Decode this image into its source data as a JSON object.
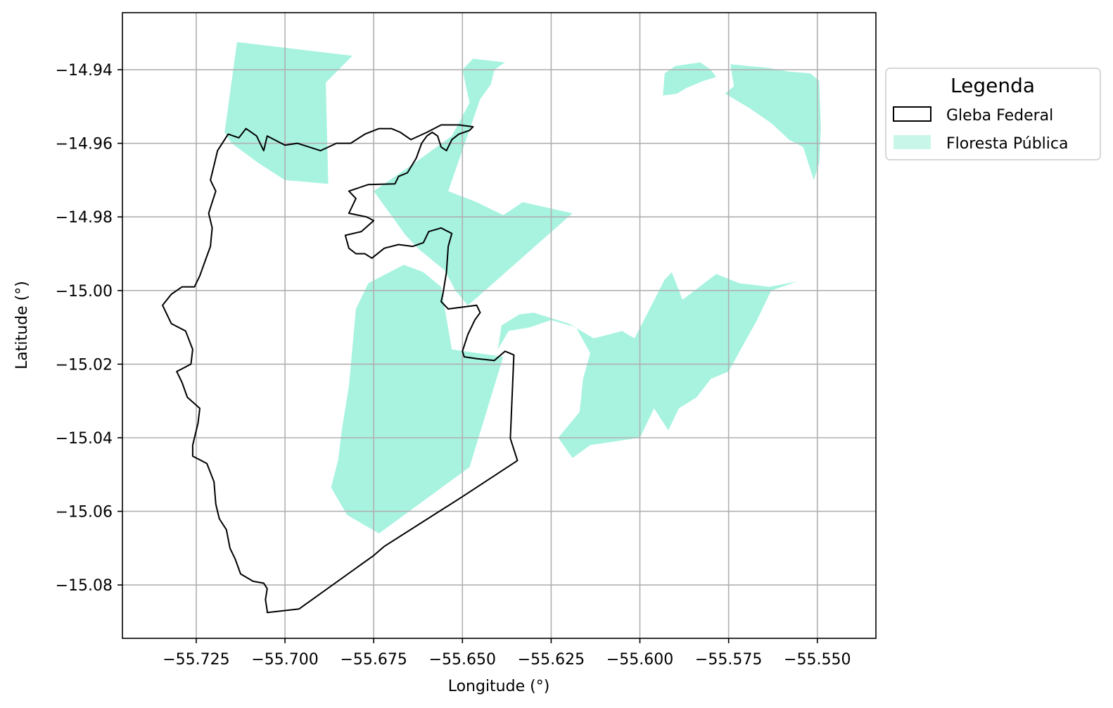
{
  "chart_data": {
    "type": "map",
    "xlabel": "Longitude (°)",
    "ylabel": "Latitude (°)",
    "xlim": [
      -55.7458,
      -55.5335
    ],
    "ylim": [
      -15.0945,
      -14.9245
    ],
    "grid": true,
    "x_ticks": [
      {
        "value": -55.725,
        "label": "−55.725"
      },
      {
        "value": -55.7,
        "label": "−55.700"
      },
      {
        "value": -55.675,
        "label": "−55.675"
      },
      {
        "value": -55.65,
        "label": "−55.650"
      },
      {
        "value": -55.625,
        "label": "−55.625"
      },
      {
        "value": -55.6,
        "label": "−55.600"
      },
      {
        "value": -55.575,
        "label": "−55.575"
      },
      {
        "value": -55.55,
        "label": "−55.550"
      }
    ],
    "y_ticks": [
      {
        "value": -14.94,
        "label": "−14.94"
      },
      {
        "value": -14.96,
        "label": "−14.96"
      },
      {
        "value": -14.98,
        "label": "−14.98"
      },
      {
        "value": -15.0,
        "label": "−15.00"
      },
      {
        "value": -15.02,
        "label": "−15.02"
      },
      {
        "value": -15.04,
        "label": "−15.04"
      },
      {
        "value": -15.06,
        "label": "−15.06"
      },
      {
        "value": -15.08,
        "label": "−15.08"
      }
    ],
    "legend": {
      "title": "Legenda",
      "placement": "outside-right-top",
      "entries": [
        {
          "label": "Gleba Federal",
          "style": "outline",
          "color": "#000000"
        },
        {
          "label": "Floresta Pública",
          "style": "fill",
          "color": "#a7f3e0"
        }
      ]
    },
    "layers": [
      {
        "name": "Floresta Pública",
        "fill": "#a7f3e0",
        "polygons": [
          [
            [
              -55.7135,
              -14.9325
            ],
            [
              -55.681,
              -14.9362
            ],
            [
              -55.6885,
              -14.9435
            ],
            [
              -55.6878,
              -14.971
            ],
            [
              -55.7,
              -14.97
            ],
            [
              -55.708,
              -14.965
            ],
            [
              -55.715,
              -14.96
            ],
            [
              -55.717,
              -14.957
            ]
          ],
          [
            [
              -55.675,
              -14.973
            ],
            [
              -55.663,
              -14.965
            ],
            [
              -55.653,
              -14.958
            ],
            [
              -55.648,
              -14.949
            ],
            [
              -55.65,
              -14.94
            ],
            [
              -55.647,
              -14.937
            ],
            [
              -55.638,
              -14.938
            ],
            [
              -55.641,
              -14.94
            ],
            [
              -55.642,
              -14.944
            ],
            [
              -55.645,
              -14.948
            ],
            [
              -55.654,
              -14.973
            ],
            [
              -55.646,
              -14.976
            ],
            [
              -55.6385,
              -14.9795
            ],
            [
              -55.633,
              -14.976
            ],
            [
              -55.619,
              -14.979
            ],
            [
              -55.646,
              -15.002
            ],
            [
              -55.6485,
              -15.004
            ],
            [
              -55.652,
              -15.0
            ],
            [
              -55.655,
              -14.9945
            ],
            [
              -55.662,
              -14.989
            ],
            [
              -55.666,
              -14.985
            ]
          ],
          [
            [
              -55.6825,
              -15.061
            ],
            [
              -55.6735,
              -15.066
            ],
            [
              -55.648,
              -15.048
            ],
            [
              -55.6385,
              -15.018
            ],
            [
              -55.653,
              -15.016
            ],
            [
              -55.656,
              -14.999
            ],
            [
              -55.661,
              -14.995
            ],
            [
              -55.6665,
              -14.993
            ],
            [
              -55.6765,
              -14.998
            ],
            [
              -55.68,
              -15.005
            ],
            [
              -55.682,
              -15.026
            ],
            [
              -55.683,
              -15.032
            ],
            [
              -55.684,
              -15.038
            ],
            [
              -55.685,
              -15.046
            ],
            [
              -55.687,
              -15.0535
            ]
          ],
          [
            [
              -55.64,
              -15.016
            ],
            [
              -55.637,
              -15.011
            ],
            [
              -55.631,
              -15.01
            ],
            [
              -55.625,
              -15.008
            ],
            [
              -55.618,
              -15.01
            ],
            [
              -55.614,
              -15.017
            ],
            [
              -55.616,
              -15.024
            ],
            [
              -55.617,
              -15.033
            ],
            [
              -55.623,
              -15.04
            ],
            [
              -55.619,
              -15.0455
            ],
            [
              -55.614,
              -15.042
            ],
            [
              -55.6,
              -15.04
            ],
            [
              -55.596,
              -15.032
            ],
            [
              -55.592,
              -15.038
            ],
            [
              -55.589,
              -15.032
            ],
            [
              -55.584,
              -15.029
            ],
            [
              -55.58,
              -15.024
            ],
            [
              -55.575,
              -15.022
            ],
            [
              -55.571,
              -15.015
            ],
            [
              -55.567,
              -15.008
            ],
            [
              -55.563,
              -15.0
            ],
            [
              -55.5555,
              -14.9975
            ],
            [
              -55.5635,
              -14.999
            ],
            [
              -55.572,
              -14.998
            ],
            [
              -55.5785,
              -14.9955
            ],
            [
              -55.588,
              -15.0025
            ],
            [
              -55.591,
              -14.995
            ],
            [
              -55.593,
              -14.997
            ],
            [
              -55.6015,
              -15.013
            ],
            [
              -55.605,
              -15.011
            ],
            [
              -55.609,
              -15.012
            ],
            [
              -55.613,
              -15.013
            ],
            [
              -55.62,
              -15.009
            ],
            [
              -55.625,
              -15.0075
            ],
            [
              -55.63,
              -15.006
            ],
            [
              -55.634,
              -15.0065
            ],
            [
              -55.639,
              -15.0095
            ]
          ],
          [
            [
              -55.5935,
              -14.947
            ],
            [
              -55.593,
              -14.941
            ],
            [
              -55.59,
              -14.939
            ],
            [
              -55.583,
              -14.938
            ],
            [
              -55.58,
              -14.94
            ],
            [
              -55.5785,
              -14.942
            ],
            [
              -55.582,
              -14.943
            ],
            [
              -55.587,
              -14.945
            ],
            [
              -55.5895,
              -14.9465
            ]
          ],
          [
            [
              -55.5745,
              -14.9385
            ],
            [
              -55.5735,
              -14.9445
            ],
            [
              -55.576,
              -14.9465
            ],
            [
              -55.569,
              -14.9505
            ],
            [
              -55.563,
              -14.9545
            ],
            [
              -55.558,
              -14.959
            ],
            [
              -55.554,
              -14.961
            ],
            [
              -55.551,
              -14.97
            ],
            [
              -55.5495,
              -14.9655
            ],
            [
              -55.549,
              -14.956
            ],
            [
              -55.5495,
              -14.943
            ],
            [
              -55.552,
              -14.941
            ],
            [
              -55.558,
              -14.9405
            ],
            [
              -55.564,
              -14.9395
            ]
          ]
        ]
      },
      {
        "name": "Gleba Federal",
        "stroke": "#000000",
        "polygons": [
          [
            [
              -55.705,
              -15.0875
            ],
            [
              -55.696,
              -15.0865
            ],
            [
              -55.675,
              -15.072
            ],
            [
              -55.672,
              -15.0695
            ],
            [
              -55.65,
              -15.056
            ],
            [
              -55.6345,
              -15.0462
            ],
            [
              -55.6365,
              -15.0402
            ],
            [
              -55.6355,
              -15.0175
            ],
            [
              -55.638,
              -15.0165
            ],
            [
              -55.641,
              -15.019
            ],
            [
              -55.646,
              -15.0185
            ],
            [
              -55.6495,
              -15.018
            ],
            [
              -55.65,
              -15.0165
            ],
            [
              -55.6485,
              -15.012
            ],
            [
              -55.6465,
              -15.008
            ],
            [
              -55.645,
              -15.006
            ],
            [
              -55.646,
              -15.004
            ],
            [
              -55.65,
              -15.0045
            ],
            [
              -55.654,
              -15.005
            ],
            [
              -55.656,
              -15.003
            ],
            [
              -55.6555,
              -15.001
            ],
            [
              -55.6545,
              -14.995
            ],
            [
              -55.654,
              -14.988
            ],
            [
              -55.653,
              -14.9845
            ],
            [
              -55.656,
              -14.983
            ],
            [
              -55.6595,
              -14.984
            ],
            [
              -55.661,
              -14.987
            ],
            [
              -55.664,
              -14.988
            ],
            [
              -55.668,
              -14.9875
            ],
            [
              -55.672,
              -14.9885
            ],
            [
              -55.6755,
              -14.9912
            ],
            [
              -55.6775,
              -14.99
            ],
            [
              -55.68,
              -14.99
            ],
            [
              -55.682,
              -14.9885
            ],
            [
              -55.683,
              -14.985
            ],
            [
              -55.6785,
              -14.984
            ],
            [
              -55.675,
              -14.981
            ],
            [
              -55.677,
              -14.98
            ],
            [
              -55.682,
              -14.979
            ],
            [
              -55.681,
              -14.977
            ],
            [
              -55.68,
              -14.975
            ],
            [
              -55.682,
              -14.973
            ],
            [
              -55.6765,
              -14.9712
            ],
            [
              -55.669,
              -14.971
            ],
            [
              -55.668,
              -14.969
            ],
            [
              -55.6655,
              -14.968
            ],
            [
              -55.663,
              -14.964
            ],
            [
              -55.6615,
              -14.96
            ],
            [
              -55.66,
              -14.958
            ],
            [
              -55.6585,
              -14.957
            ],
            [
              -55.657,
              -14.958
            ],
            [
              -55.656,
              -14.961
            ],
            [
              -55.6545,
              -14.962
            ],
            [
              -55.653,
              -14.959
            ],
            [
              -55.651,
              -14.9575
            ],
            [
              -55.648,
              -14.9565
            ],
            [
              -55.647,
              -14.9555
            ],
            [
              -55.651,
              -14.955
            ],
            [
              -55.656,
              -14.955
            ],
            [
              -55.66,
              -14.957
            ],
            [
              -55.6645,
              -14.959
            ],
            [
              -55.6675,
              -14.957
            ],
            [
              -55.67,
              -14.956
            ],
            [
              -55.6735,
              -14.956
            ],
            [
              -55.6775,
              -14.9575
            ],
            [
              -55.6815,
              -14.96
            ],
            [
              -55.6855,
              -14.96
            ],
            [
              -55.69,
              -14.962
            ],
            [
              -55.6965,
              -14.96
            ],
            [
              -55.7,
              -14.9605
            ],
            [
              -55.705,
              -14.958
            ],
            [
              -55.706,
              -14.962
            ],
            [
              -55.708,
              -14.958
            ],
            [
              -55.711,
              -14.956
            ],
            [
              -55.713,
              -14.9585
            ],
            [
              -55.716,
              -14.9575
            ],
            [
              -55.719,
              -14.962
            ],
            [
              -55.72,
              -14.966
            ],
            [
              -55.721,
              -14.97
            ],
            [
              -55.7195,
              -14.973
            ],
            [
              -55.7205,
              -14.976
            ],
            [
              -55.7215,
              -14.979
            ],
            [
              -55.7205,
              -14.983
            ],
            [
              -55.721,
              -14.988
            ],
            [
              -55.7225,
              -14.992
            ],
            [
              -55.724,
              -14.996
            ],
            [
              -55.7255,
              -14.999
            ],
            [
              -55.729,
              -14.999
            ],
            [
              -55.732,
              -15.001
            ],
            [
              -55.7345,
              -15.004
            ],
            [
              -55.732,
              -15.009
            ],
            [
              -55.728,
              -15.011
            ],
            [
              -55.726,
              -15.016
            ],
            [
              -55.7265,
              -15.02
            ],
            [
              -55.7305,
              -15.022
            ],
            [
              -55.729,
              -15.025
            ],
            [
              -55.7275,
              -15.029
            ],
            [
              -55.724,
              -15.032
            ],
            [
              -55.7245,
              -15.036
            ],
            [
              -55.726,
              -15.042
            ],
            [
              -55.726,
              -15.045
            ],
            [
              -55.722,
              -15.047
            ],
            [
              -55.72,
              -15.052
            ],
            [
              -55.7195,
              -15.058
            ],
            [
              -55.7185,
              -15.062
            ],
            [
              -55.7165,
              -15.065
            ],
            [
              -55.7155,
              -15.07
            ],
            [
              -55.714,
              -15.073
            ],
            [
              -55.7125,
              -15.077
            ],
            [
              -55.709,
              -15.079
            ],
            [
              -55.706,
              -15.0795
            ],
            [
              -55.705,
              -15.081
            ],
            [
              -55.7055,
              -15.084
            ],
            [
              -55.705,
              -15.087
            ]
          ]
        ]
      }
    ]
  }
}
